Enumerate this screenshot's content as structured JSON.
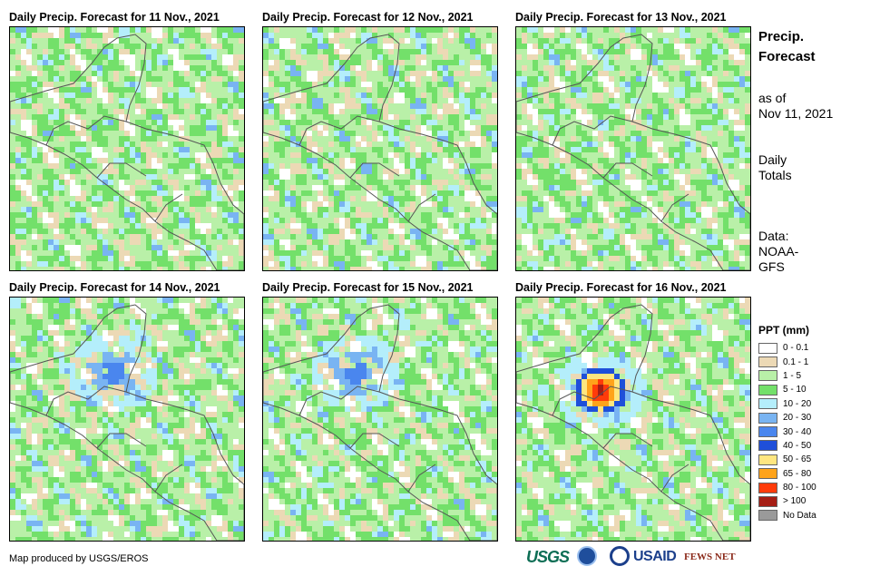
{
  "panels": [
    {
      "title": "Daily Precip. Forecast for 11 Nov., 2021"
    },
    {
      "title": "Daily Precip. Forecast for 12 Nov., 2021"
    },
    {
      "title": "Daily Precip. Forecast for 13 Nov., 2021"
    },
    {
      "title": "Daily Precip. Forecast for 14 Nov., 2021"
    },
    {
      "title": "Daily Precip. Forecast for 15 Nov., 2021"
    },
    {
      "title": "Daily Precip. Forecast for 16 Nov., 2021"
    }
  ],
  "side": {
    "title_line1": "Precip.",
    "title_line2": "Forecast",
    "asof_line1": "as of",
    "asof_line2": "Nov 11, 2021",
    "totals_line1": "Daily",
    "totals_line2": "Totals",
    "data_line1": "Data:",
    "data_line2": "NOAA-",
    "data_line3": "GFS"
  },
  "legend": {
    "title": "PPT (mm)",
    "items": [
      {
        "label": "0 - 0.1",
        "color": "#ffffff"
      },
      {
        "label": "0.1 - 1",
        "color": "#ecd9b5"
      },
      {
        "label": "1 - 5",
        "color": "#b9f0a8"
      },
      {
        "label": "5 - 10",
        "color": "#73e06a"
      },
      {
        "label": "10 - 20",
        "color": "#b4eefb"
      },
      {
        "label": "20 - 30",
        "color": "#79b4f2"
      },
      {
        "label": "30 - 40",
        "color": "#4a86ee"
      },
      {
        "label": "40 - 50",
        "color": "#1f4fd9"
      },
      {
        "label": "50 - 65",
        "color": "#ffe680"
      },
      {
        "label": "65 - 80",
        "color": "#ffa31a"
      },
      {
        "label": "80 - 100",
        "color": "#ff3b0a"
      },
      {
        "label": "> 100",
        "color": "#a51d14"
      },
      {
        "label": "No Data",
        "color": "#9a9a9a"
      }
    ]
  },
  "footer": {
    "credit": "Map produced by USGS/EROS"
  },
  "logos": {
    "usgs": "USGS",
    "usaid": "USAID",
    "fews": "FEWS NET"
  }
}
